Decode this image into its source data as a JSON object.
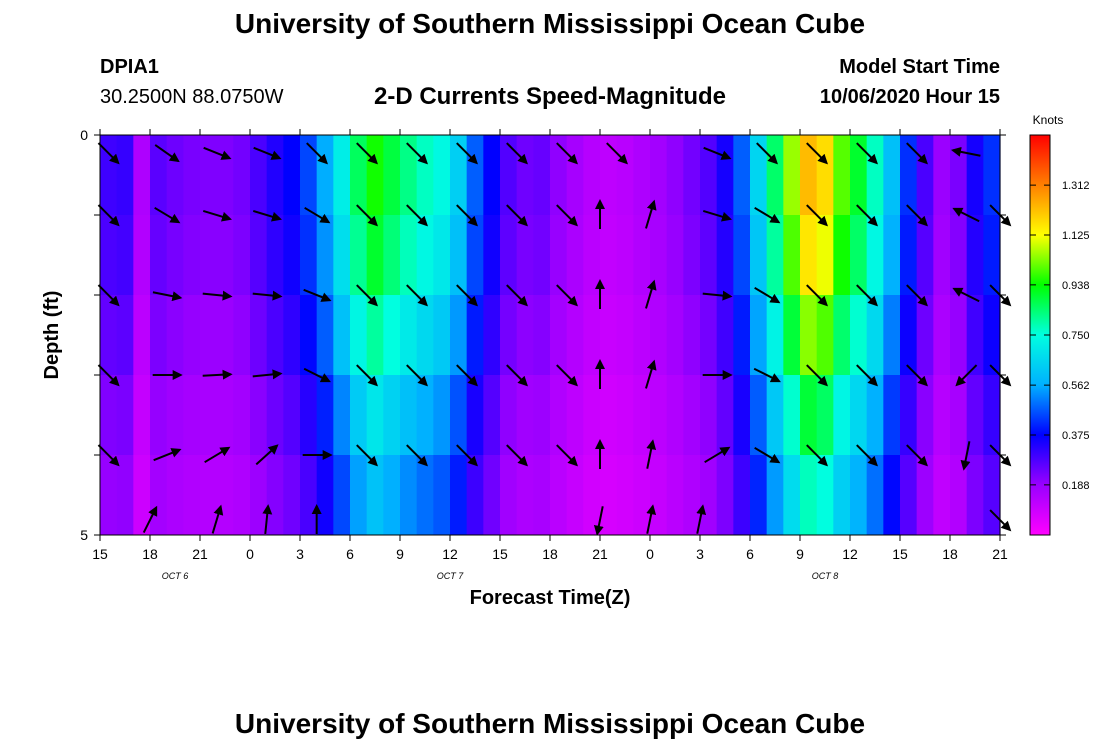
{
  "header": {
    "title": "University of Southern Mississippi Ocean Cube",
    "station_id": "DPIA1",
    "station_coords": "30.2500N 88.0750W",
    "subtitle": "2-D Currents Speed-Magnitude",
    "model_label": "Model Start Time",
    "model_time": "10/06/2020 Hour 15"
  },
  "footer": {
    "title": "University of Southern Mississippi Ocean Cube"
  },
  "chart_data": {
    "type": "heatmap",
    "xlabel": "Forecast Time(Z)",
    "ylabel": "Depth (ft)",
    "x_range": [
      0,
      54
    ],
    "y_range": [
      0,
      5
    ],
    "x_tick_values": [
      0,
      3,
      6,
      9,
      12,
      15,
      18,
      21,
      24,
      27,
      30,
      33,
      36,
      39,
      42,
      45,
      48,
      51,
      54
    ],
    "x_tick_labels": [
      "15",
      "18",
      "21",
      "0",
      "3",
      "6",
      "9",
      "12",
      "15",
      "18",
      "21",
      "0",
      "3",
      "6",
      "9",
      "12",
      "15",
      "18",
      "21"
    ],
    "y_tick_labels": [
      "0",
      "5"
    ],
    "date_labels": [
      {
        "text": "OCT 6",
        "x": 4.5
      },
      {
        "text": "OCT 7",
        "x": 21
      },
      {
        "text": "OCT 8",
        "x": 43.5
      }
    ],
    "colorbar": {
      "unit": "Knots",
      "range": [
        0,
        1.5
      ],
      "tick_labels": [
        "1.312",
        "1.125",
        "0.938",
        "0.750",
        "0.562",
        "0.375",
        "0.188"
      ],
      "tick_values": [
        1.312,
        1.125,
        0.938,
        0.75,
        0.562,
        0.375,
        0.188
      ]
    },
    "grid": false,
    "cell_hours": 1,
    "depth_bins": [
      0.5,
      1.5,
      2.5,
      3.5,
      4.5
    ],
    "speed_profile_hours": [
      0,
      1,
      2,
      2.5,
      3,
      4,
      6,
      8,
      9,
      10,
      11,
      12,
      13,
      14,
      15,
      16,
      16.5,
      17,
      18,
      19,
      20,
      21,
      22,
      23,
      24,
      25,
      26,
      27,
      28,
      29,
      30,
      31,
      32,
      33,
      34,
      35,
      36,
      37,
      38,
      39,
      40,
      41,
      42,
      43,
      44,
      45,
      46,
      47,
      48,
      49,
      50,
      51,
      52,
      53,
      54
    ],
    "speed_profile_knots": [
      0.3,
      0.3,
      0.32,
      0.15,
      0.28,
      0.25,
      0.22,
      0.22,
      0.25,
      0.32,
      0.35,
      0.4,
      0.5,
      0.62,
      0.8,
      0.92,
      0.95,
      0.92,
      0.85,
      0.8,
      0.75,
      0.72,
      0.55,
      0.4,
      0.35,
      0.2,
      0.28,
      0.22,
      0.18,
      0.15,
      0.12,
      0.12,
      0.14,
      0.16,
      0.18,
      0.22,
      0.25,
      0.3,
      0.4,
      0.55,
      0.75,
      0.95,
      1.15,
      1.3,
      1.05,
      0.95,
      0.85,
      0.7,
      0.5,
      0.35,
      0.22,
      0.15,
      0.3,
      0.4,
      0.45
    ],
    "depth_factor": [
      1.0,
      0.88,
      0.8,
      0.7,
      0.62
    ],
    "arrow_rows": [
      {
        "depth": 0,
        "hours": [
          0.5,
          4,
          7,
          10,
          13,
          16,
          19,
          22,
          25,
          28,
          31,
          37,
          40,
          43,
          46,
          49,
          52
        ],
        "dx": [
          1,
          1,
          1,
          1,
          1,
          1,
          1,
          1,
          1,
          1,
          1,
          1,
          1,
          1,
          1,
          1,
          -1
        ],
        "dy": [
          1,
          0.7,
          0.4,
          0.4,
          1,
          1,
          1,
          1,
          1,
          1,
          1,
          0.4,
          1,
          1,
          1,
          1,
          -0.2
        ]
      },
      {
        "depth": 1,
        "hours": [
          0.5,
          4,
          7,
          10,
          13,
          16,
          19,
          22,
          25,
          28,
          30,
          33,
          37,
          40,
          43,
          46,
          49,
          52,
          54
        ],
        "dx": [
          1,
          1,
          1,
          1,
          1,
          1,
          1,
          1,
          1,
          1,
          0,
          0.3,
          1,
          1,
          1,
          1,
          1,
          -1,
          1
        ],
        "dy": [
          1,
          0.6,
          0.3,
          0.3,
          0.6,
          1,
          1,
          1,
          1,
          1,
          -1,
          -1,
          0.3,
          0.6,
          1,
          1,
          1,
          -0.5,
          1
        ]
      },
      {
        "depth": 2,
        "hours": [
          0.5,
          4,
          7,
          10,
          13,
          16,
          19,
          22,
          25,
          28,
          30,
          33,
          37,
          40,
          43,
          46,
          49,
          52,
          54
        ],
        "dx": [
          1,
          1,
          1,
          1,
          1,
          1,
          1,
          1,
          1,
          1,
          0,
          0.3,
          1,
          1,
          1,
          1,
          1,
          -1,
          1
        ],
        "dy": [
          1,
          0.2,
          0.1,
          0.1,
          0.4,
          1,
          1,
          1,
          1,
          1,
          -1,
          -1,
          0.1,
          0.6,
          1,
          1,
          1,
          -0.5,
          1
        ]
      },
      {
        "depth": 3,
        "hours": [
          0.5,
          4,
          7,
          10,
          13,
          16,
          19,
          22,
          25,
          28,
          30,
          33,
          37,
          40,
          43,
          46,
          49,
          52,
          54
        ],
        "dx": [
          1,
          1,
          1,
          1,
          1,
          1,
          1,
          1,
          1,
          1,
          0,
          0.3,
          1,
          1,
          1,
          1,
          1,
          -1,
          1
        ],
        "dy": [
          1,
          0,
          -0.05,
          -0.1,
          0.5,
          1,
          1,
          1,
          1,
          1,
          -1,
          -1,
          0,
          0.5,
          1,
          1,
          1,
          1,
          1
        ]
      },
      {
        "depth": 4,
        "hours": [
          0.5,
          4,
          7,
          10,
          13,
          16,
          19,
          22,
          25,
          28,
          30,
          33,
          37,
          40,
          43,
          46,
          49,
          52,
          54
        ],
        "dx": [
          1,
          1,
          1,
          1,
          1,
          1,
          1,
          1,
          1,
          1,
          0,
          0.2,
          1,
          1,
          1,
          1,
          1,
          -0.2,
          1
        ],
        "dy": [
          1,
          -0.4,
          -0.6,
          -0.9,
          0,
          1,
          1,
          1,
          1,
          1,
          -1,
          -1,
          -0.6,
          0.6,
          1,
          1,
          1,
          1,
          1
        ]
      },
      {
        "depth": 5,
        "hours": [
          3,
          7,
          10,
          13,
          30,
          33,
          36,
          54
        ],
        "dx": [
          0.5,
          0.3,
          0.1,
          0,
          -0.2,
          0.2,
          0.2,
          1
        ],
        "dy": [
          -1,
          -1,
          -1,
          -1,
          1,
          -1,
          -1,
          1
        ]
      }
    ]
  }
}
